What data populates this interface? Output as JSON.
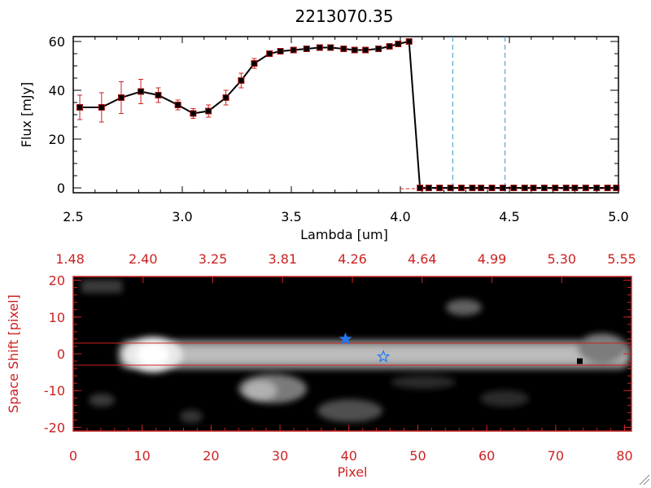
{
  "chart_data": [
    {
      "type": "line",
      "title": "2213070.35",
      "xlabel": "Lambda [um]",
      "ylabel": "Flux [mJy]",
      "xlim": [
        2.5,
        5.0
      ],
      "ylim": [
        -2,
        62
      ],
      "xticks": [
        "2.5",
        "3.0",
        "3.5",
        "4.0",
        "4.5",
        "5.0"
      ],
      "yticks": [
        "0",
        "20",
        "40",
        "60"
      ],
      "series": [
        {
          "x": [
            2.53,
            2.63,
            2.72,
            2.81,
            2.89,
            2.98,
            3.05,
            3.12,
            3.2,
            3.27,
            3.33,
            3.4,
            3.45,
            3.51,
            3.57,
            3.63,
            3.68,
            3.74,
            3.79,
            3.84,
            3.9,
            3.95,
            3.99,
            4.04,
            4.09,
            4.13,
            4.18,
            4.23,
            4.28,
            4.33,
            4.37,
            4.42,
            4.47,
            4.52,
            4.57,
            4.61,
            4.66,
            4.71,
            4.76,
            4.8,
            4.85,
            4.9,
            4.95,
            4.99
          ],
          "y": [
            33,
            33,
            37,
            39.5,
            38,
            34,
            30.5,
            31.5,
            37,
            44,
            51,
            55,
            56,
            56.5,
            57,
            57.5,
            57.5,
            57,
            56.5,
            56.5,
            57,
            58,
            59,
            60,
            0,
            0,
            0,
            0,
            0,
            0,
            0,
            0,
            0,
            0,
            0,
            0,
            0,
            0,
            0,
            0,
            0,
            0,
            0,
            0
          ],
          "err": [
            5,
            6,
            6.5,
            5,
            3,
            2,
            2,
            2.5,
            3,
            3,
            2,
            1,
            1,
            1,
            1,
            1,
            1,
            1,
            1,
            1,
            1,
            1,
            1,
            1,
            0,
            0,
            0,
            0,
            0,
            0,
            0,
            0,
            0,
            0,
            0,
            0,
            0,
            0,
            0,
            0,
            0,
            0,
            0,
            0
          ]
        }
      ],
      "vlines": [
        4.24,
        4.48
      ],
      "colors": {
        "line": "#000000",
        "error": "#cc2222",
        "marker_edge": "#aa1111",
        "vline": "#3399bb",
        "zero_line": "#dd2222"
      }
    },
    {
      "type": "heatmap",
      "xlabel": "Pixel",
      "ylabel": "Space Shift [pixel]",
      "xlim": [
        0,
        81
      ],
      "ylim": [
        -21,
        21
      ],
      "xticks": [
        "0",
        "10",
        "20",
        "30",
        "40",
        "50",
        "60",
        "70",
        "80"
      ],
      "yticks": [
        "-20",
        "-10",
        "0",
        "10",
        "20"
      ],
      "top_ticks": [
        "1.48",
        "2.40",
        "3.25",
        "3.81",
        "4.26",
        "4.64",
        "4.99",
        "5.30",
        "5.55"
      ],
      "hlines": [
        2.9,
        -3.1
      ],
      "markers": [
        {
          "x": 39.5,
          "y": 4,
          "symbol": "filled-star"
        },
        {
          "x": 45,
          "y": -0.8,
          "symbol": "open-star"
        },
        {
          "x": 73.5,
          "y": -2,
          "symbol": "square"
        }
      ],
      "colors": {
        "axis": "#cc2222",
        "star": "#2277ee",
        "hline": "#cc2222"
      }
    }
  ]
}
